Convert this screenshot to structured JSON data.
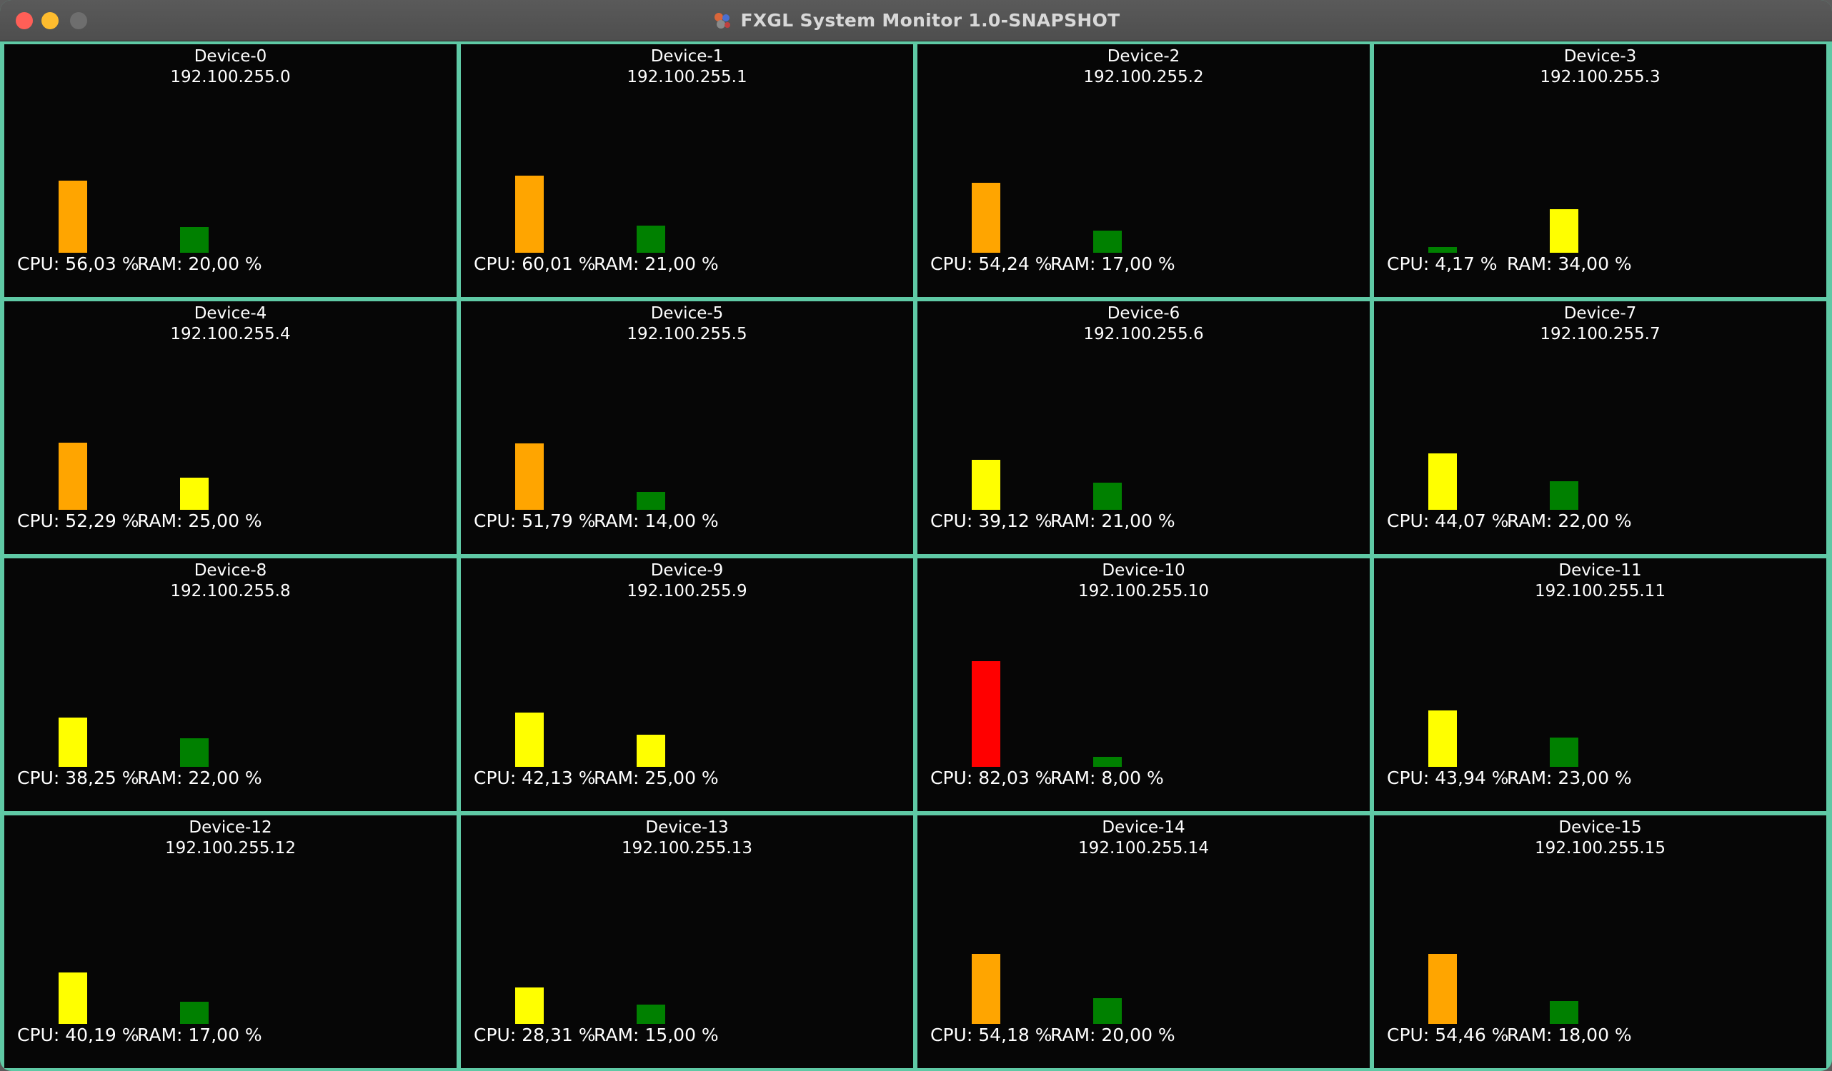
{
  "window": {
    "title": "FXGL System Monitor 1.0-SNAPSHOT"
  },
  "colors": {
    "background": "#060606",
    "border": "#5fc9a5",
    "low": "#008000",
    "medium": "#ffff00",
    "high": "#ffa500",
    "critical": "#ff0000"
  },
  "devices": [
    {
      "name": "Device-0",
      "ip": "192.100.255.0",
      "cpu_label": "CPU: 56,03 %",
      "ram_label": "RAM: 20,00 %",
      "cpu": 56.03,
      "ram": 20.0,
      "cpu_color": "#ffa500",
      "ram_color": "#008000"
    },
    {
      "name": "Device-1",
      "ip": "192.100.255.1",
      "cpu_label": "CPU: 60,01 %",
      "ram_label": "RAM: 21,00 %",
      "cpu": 60.01,
      "ram": 21.0,
      "cpu_color": "#ffa500",
      "ram_color": "#008000"
    },
    {
      "name": "Device-2",
      "ip": "192.100.255.2",
      "cpu_label": "CPU: 54,24 %",
      "ram_label": "RAM: 17,00 %",
      "cpu": 54.24,
      "ram": 17.0,
      "cpu_color": "#ffa500",
      "ram_color": "#008000"
    },
    {
      "name": "Device-3",
      "ip": "192.100.255.3",
      "cpu_label": "CPU: 4,17 %",
      "ram_label": "RAM: 34,00 %",
      "cpu": 4.17,
      "ram": 34.0,
      "cpu_color": "#008000",
      "ram_color": "#ffff00"
    },
    {
      "name": "Device-4",
      "ip": "192.100.255.4",
      "cpu_label": "CPU: 52,29 %",
      "ram_label": "RAM: 25,00 %",
      "cpu": 52.29,
      "ram": 25.0,
      "cpu_color": "#ffa500",
      "ram_color": "#ffff00"
    },
    {
      "name": "Device-5",
      "ip": "192.100.255.5",
      "cpu_label": "CPU: 51,79 %",
      "ram_label": "RAM: 14,00 %",
      "cpu": 51.79,
      "ram": 14.0,
      "cpu_color": "#ffa500",
      "ram_color": "#008000"
    },
    {
      "name": "Device-6",
      "ip": "192.100.255.6",
      "cpu_label": "CPU: 39,12 %",
      "ram_label": "RAM: 21,00 %",
      "cpu": 39.12,
      "ram": 21.0,
      "cpu_color": "#ffff00",
      "ram_color": "#008000"
    },
    {
      "name": "Device-7",
      "ip": "192.100.255.7",
      "cpu_label": "CPU: 44,07 %",
      "ram_label": "RAM: 22,00 %",
      "cpu": 44.07,
      "ram": 22.0,
      "cpu_color": "#ffff00",
      "ram_color": "#008000"
    },
    {
      "name": "Device-8",
      "ip": "192.100.255.8",
      "cpu_label": "CPU: 38,25 %",
      "ram_label": "RAM: 22,00 %",
      "cpu": 38.25,
      "ram": 22.0,
      "cpu_color": "#ffff00",
      "ram_color": "#008000"
    },
    {
      "name": "Device-9",
      "ip": "192.100.255.9",
      "cpu_label": "CPU: 42,13 %",
      "ram_label": "RAM: 25,00 %",
      "cpu": 42.13,
      "ram": 25.0,
      "cpu_color": "#ffff00",
      "ram_color": "#ffff00"
    },
    {
      "name": "Device-10",
      "ip": "192.100.255.10",
      "cpu_label": "CPU: 82,03 %",
      "ram_label": "RAM: 8,00 %",
      "cpu": 82.03,
      "ram": 8.0,
      "cpu_color": "#ff0000",
      "ram_color": "#008000"
    },
    {
      "name": "Device-11",
      "ip": "192.100.255.11",
      "cpu_label": "CPU: 43,94 %",
      "ram_label": "RAM: 23,00 %",
      "cpu": 43.94,
      "ram": 23.0,
      "cpu_color": "#ffff00",
      "ram_color": "#008000"
    },
    {
      "name": "Device-12",
      "ip": "192.100.255.12",
      "cpu_label": "CPU: 40,19 %",
      "ram_label": "RAM: 17,00 %",
      "cpu": 40.19,
      "ram": 17.0,
      "cpu_color": "#ffff00",
      "ram_color": "#008000"
    },
    {
      "name": "Device-13",
      "ip": "192.100.255.13",
      "cpu_label": "CPU: 28,31 %",
      "ram_label": "RAM: 15,00 %",
      "cpu": 28.31,
      "ram": 15.0,
      "cpu_color": "#ffff00",
      "ram_color": "#008000"
    },
    {
      "name": "Device-14",
      "ip": "192.100.255.14",
      "cpu_label": "CPU: 54,18 %",
      "ram_label": "RAM: 20,00 %",
      "cpu": 54.18,
      "ram": 20.0,
      "cpu_color": "#ffa500",
      "ram_color": "#008000"
    },
    {
      "name": "Device-15",
      "ip": "192.100.255.15",
      "cpu_label": "CPU: 54,46 %",
      "ram_label": "RAM: 18,00 %",
      "cpu": 54.46,
      "ram": 18.0,
      "cpu_color": "#ffa500",
      "ram_color": "#008000"
    }
  ]
}
